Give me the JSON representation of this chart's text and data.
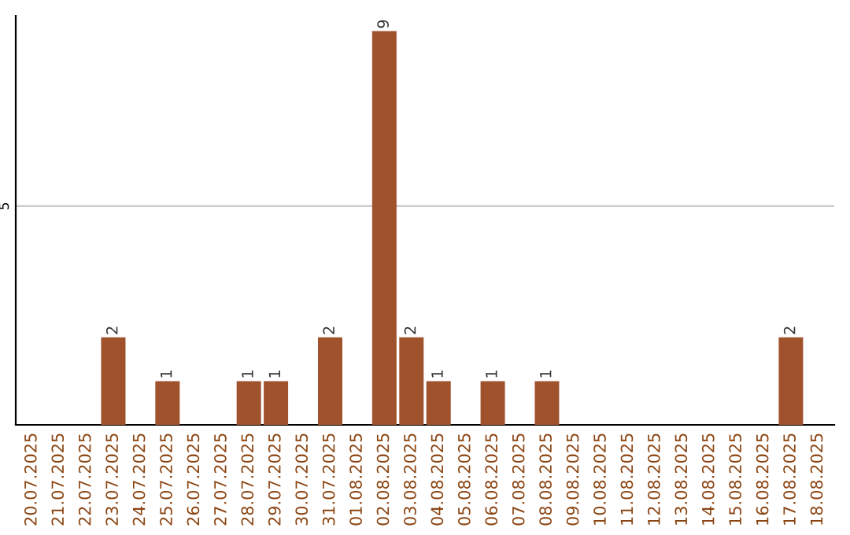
{
  "chart_data": {
    "type": "bar",
    "categories": [
      "20.07.2025",
      "21.07.2025",
      "22.07.2025",
      "23.07.2025",
      "24.07.2025",
      "25.07.2025",
      "26.07.2025",
      "27.07.2025",
      "28.07.2025",
      "29.07.2025",
      "30.07.2025",
      "31.07.2025",
      "01.08.2025",
      "02.08.2025",
      "03.08.2025",
      "04.08.2025",
      "05.08.2025",
      "06.08.2025",
      "07.08.2025",
      "08.08.2025",
      "09.08.2025",
      "10.08.2025",
      "11.08.2025",
      "12.08.2025",
      "13.08.2025",
      "14.08.2025",
      "15.08.2025",
      "16.08.2025",
      "17.08.2025",
      "18.08.2025"
    ],
    "values": [
      0,
      0,
      0,
      2,
      0,
      1,
      0,
      0,
      1,
      1,
      0,
      2,
      0,
      9,
      2,
      1,
      0,
      1,
      0,
      1,
      0,
      0,
      0,
      0,
      0,
      0,
      0,
      0,
      2,
      0
    ],
    "value_labels": [
      null,
      null,
      null,
      "2",
      null,
      "1",
      null,
      null,
      "1",
      "1",
      null,
      "2",
      null,
      "9",
      "2",
      "1",
      null,
      "1",
      null,
      "1",
      null,
      null,
      null,
      null,
      null,
      null,
      null,
      null,
      "2",
      null
    ],
    "color": "#a0522d",
    "ylim": [
      0,
      9.35
    ],
    "yticks": [
      5
    ],
    "grid": "y"
  }
}
